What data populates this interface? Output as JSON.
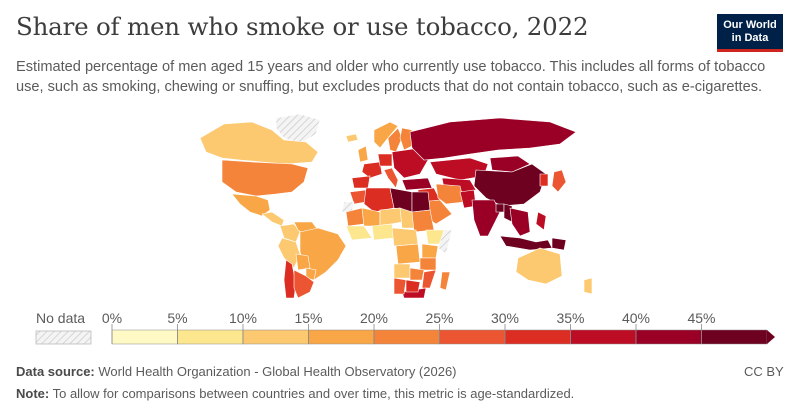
{
  "title": "Share of men who smoke or use tobacco, 2022",
  "subtitle": "Estimated percentage of men aged 15 years and older who currently use tobacco. This includes all forms of tobacco use, such as smoking, chewing or snuffing, but excludes products that do not contain tobacco, such as e-cigarettes.",
  "logo": {
    "line1": "Our World",
    "line2": "in Data"
  },
  "legend": {
    "no_data_label": "No data",
    "ticks": [
      "0%",
      "5%",
      "10%",
      "15%",
      "20%",
      "25%",
      "30%",
      "35%",
      "40%",
      "45%"
    ],
    "bins": [
      {
        "range": [
          0,
          5
        ],
        "color": "#fef9c5"
      },
      {
        "range": [
          5,
          10
        ],
        "color": "#fce68e"
      },
      {
        "range": [
          10,
          15
        ],
        "color": "#fcc971"
      },
      {
        "range": [
          15,
          20
        ],
        "color": "#f9a647"
      },
      {
        "range": [
          20,
          25
        ],
        "color": "#f5843b"
      },
      {
        "range": [
          25,
          30
        ],
        "color": "#ec5531"
      },
      {
        "range": [
          30,
          35
        ],
        "color": "#dc2d22"
      },
      {
        "range": [
          35,
          40
        ],
        "color": "#bd0d24"
      },
      {
        "range": [
          40,
          45
        ],
        "color": "#9a0026"
      },
      {
        "range": [
          45,
          50
        ],
        "color": "#6e0020"
      }
    ]
  },
  "regions": [
    {
      "name": "Greenland",
      "value": null
    },
    {
      "name": "Canada",
      "value": 14
    },
    {
      "name": "United States",
      "value": 22
    },
    {
      "name": "Mexico",
      "value": 19
    },
    {
      "name": "Central America",
      "value": 13
    },
    {
      "name": "Colombia",
      "value": 12
    },
    {
      "name": "Venezuela",
      "value": 16
    },
    {
      "name": "Brazil",
      "value": 17
    },
    {
      "name": "Peru",
      "value": 14
    },
    {
      "name": "Bolivia",
      "value": 16
    },
    {
      "name": "Paraguay",
      "value": 18
    },
    {
      "name": "Chile",
      "value": 31
    },
    {
      "name": "Argentina",
      "value": 27
    },
    {
      "name": "Iceland",
      "value": 11
    },
    {
      "name": "Norway",
      "value": 18
    },
    {
      "name": "Sweden",
      "value": 22
    },
    {
      "name": "Finland",
      "value": 22
    },
    {
      "name": "United Kingdom",
      "value": 15
    },
    {
      "name": "France",
      "value": 34
    },
    {
      "name": "Spain",
      "value": 31
    },
    {
      "name": "Germany",
      "value": 31
    },
    {
      "name": "Italy",
      "value": 29
    },
    {
      "name": "Eastern Europe",
      "value": 37
    },
    {
      "name": "Russia",
      "value": 43
    },
    {
      "name": "Kazakhstan",
      "value": 38
    },
    {
      "name": "Central Asia",
      "value": 39
    },
    {
      "name": "Mongolia",
      "value": 43
    },
    {
      "name": "China",
      "value": 48
    },
    {
      "name": "Japan",
      "value": 29
    },
    {
      "name": "Korea",
      "value": 32
    },
    {
      "name": "Turkey",
      "value": 41
    },
    {
      "name": "Middle East",
      "value": 34
    },
    {
      "name": "Saudi Arabia",
      "value": 24
    },
    {
      "name": "Iran",
      "value": 21
    },
    {
      "name": "Pakistan",
      "value": 37
    },
    {
      "name": "India",
      "value": 42
    },
    {
      "name": "Bangladesh",
      "value": 46
    },
    {
      "name": "Myanmar",
      "value": 46
    },
    {
      "name": "Southeast Asia",
      "value": 42
    },
    {
      "name": "Indonesia",
      "value": 48
    },
    {
      "name": "Papua New Guinea",
      "value": 46
    },
    {
      "name": "Philippines",
      "value": 39
    },
    {
      "name": "Australia",
      "value": 12
    },
    {
      "name": "New Zealand",
      "value": 13
    },
    {
      "name": "Morocco",
      "value": 27
    },
    {
      "name": "Algeria",
      "value": 34
    },
    {
      "name": "Libya",
      "value": 48
    },
    {
      "name": "Egypt",
      "value": 48
    },
    {
      "name": "Western Sahara",
      "value": null
    },
    {
      "name": "Mauritania",
      "value": 21
    },
    {
      "name": "Mali",
      "value": 17
    },
    {
      "name": "Niger",
      "value": 12
    },
    {
      "name": "Chad",
      "value": 13
    },
    {
      "name": "Sudan",
      "value": 22
    },
    {
      "name": "West Africa",
      "value": 9
    },
    {
      "name": "Nigeria",
      "value": 7
    },
    {
      "name": "Ethiopia",
      "value": 9
    },
    {
      "name": "Somalia",
      "value": null
    },
    {
      "name": "Central Africa",
      "value": 13
    },
    {
      "name": "DR Congo",
      "value": 16
    },
    {
      "name": "Kenya",
      "value": 19
    },
    {
      "name": "Tanzania",
      "value": 21
    },
    {
      "name": "Angola",
      "value": 13
    },
    {
      "name": "Zambia",
      "value": 24
    },
    {
      "name": "Mozambique",
      "value": 27
    },
    {
      "name": "Madagascar",
      "value": 22
    },
    {
      "name": "South Africa",
      "value": 36
    },
    {
      "name": "Namibia",
      "value": 27
    },
    {
      "name": "Botswana",
      "value": 31
    }
  ],
  "footer": {
    "source_label": "Data source:",
    "source_text": " World Health Organization - Global Health Observatory (2026)",
    "note_label": "Note:",
    "note_text": " To allow for comparisons between countries and over time, this metric is age-standardized.",
    "license": "CC BY"
  }
}
